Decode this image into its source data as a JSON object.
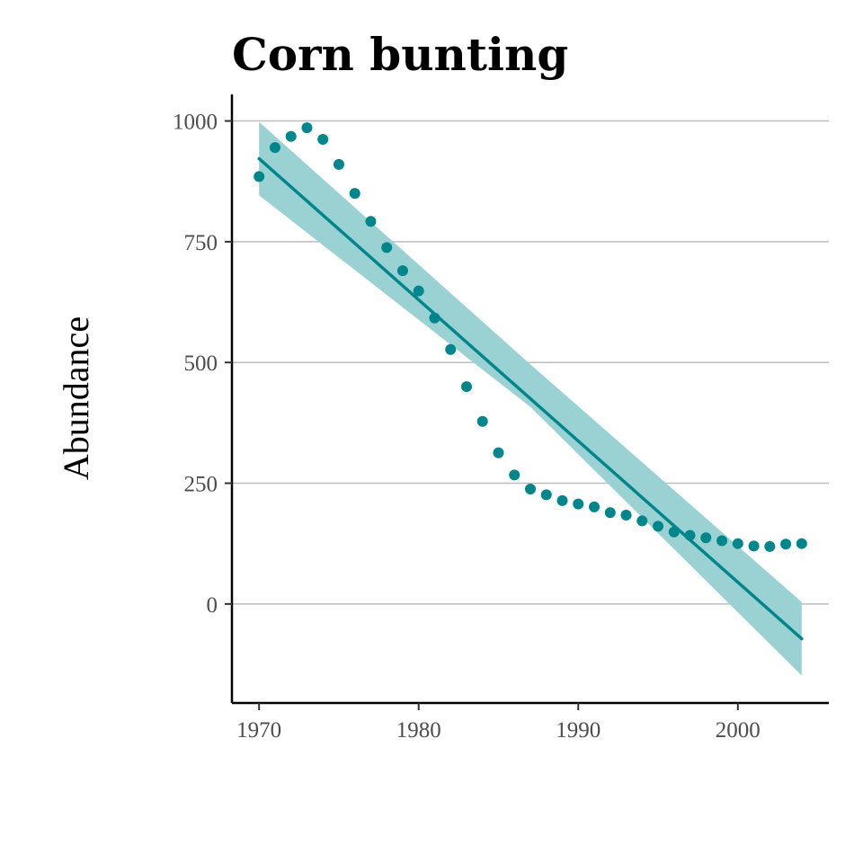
{
  "chart_data": {
    "type": "scatter",
    "title": "Corn bunting",
    "xlabel": "",
    "ylabel": "Abundance",
    "xlim": [
      1968.3,
      2005.7
    ],
    "ylim": [
      -205,
      1055
    ],
    "x_ticks": [
      1970,
      1980,
      1990,
      2000
    ],
    "y_ticks": [
      0,
      250,
      500,
      750,
      1000
    ],
    "grid": "horizontal-major",
    "colors": {
      "points": "#00868B",
      "line": "#00868B",
      "band": "#9AD1D2"
    },
    "points": {
      "x": [
        1970,
        1971,
        1972,
        1973,
        1974,
        1975,
        1976,
        1977,
        1978,
        1979,
        1980,
        1981,
        1982,
        1983,
        1984,
        1985,
        1986,
        1987,
        1988,
        1989,
        1990,
        1991,
        1992,
        1993,
        1994,
        1995,
        1996,
        1997,
        1998,
        1999,
        2000,
        2001,
        2002,
        2003,
        2004
      ],
      "y": [
        885,
        945,
        968,
        986,
        962,
        910,
        850,
        792,
        738,
        690,
        648,
        592,
        527,
        450,
        378,
        313,
        267,
        238,
        226,
        214,
        207,
        201,
        189,
        184,
        172,
        161,
        149,
        142,
        137,
        131,
        125,
        120,
        119,
        124,
        125
      ]
    },
    "trend": {
      "x": [
        1970,
        2004
      ],
      "y": [
        922,
        -72
      ]
    },
    "confidence_band": {
      "x": [
        1970,
        1987,
        2004
      ],
      "lower": [
        846,
        408,
        -148
      ],
      "upper": [
        998,
        496,
        4
      ]
    }
  }
}
